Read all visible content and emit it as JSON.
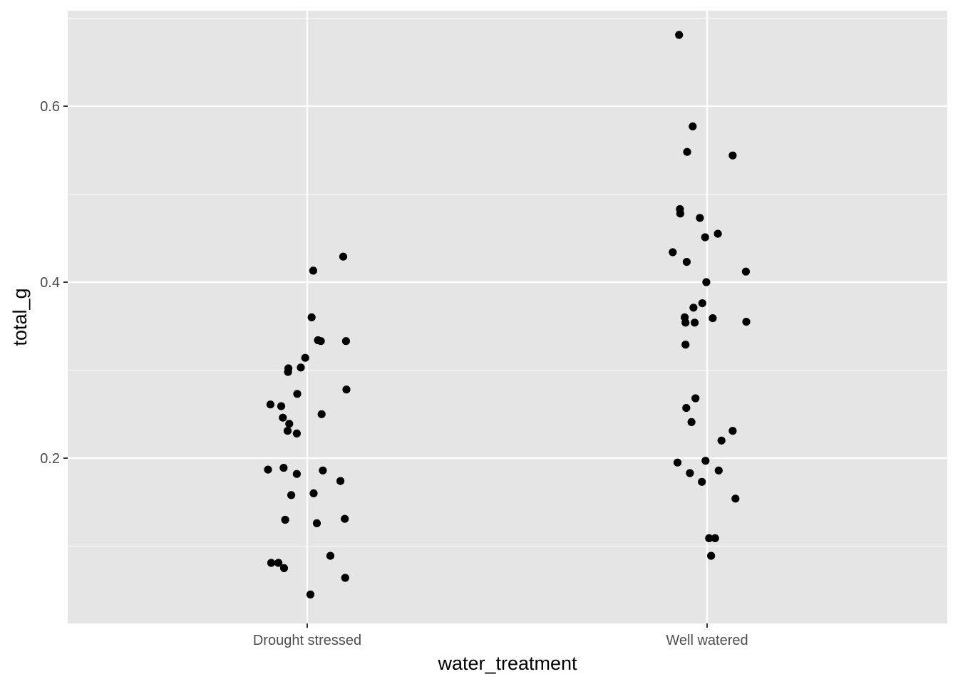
{
  "chart_data": {
    "type": "scatter",
    "title": "",
    "xlabel": "water_treatment",
    "ylabel": "total_g",
    "categories": [
      "Drought stressed",
      "Well watered"
    ],
    "ylim": [
      0.05,
      0.7
    ],
    "yticks": [
      0.2,
      0.4,
      0.6
    ],
    "ytick_labels": [
      "0.2",
      "0.4",
      "0.6"
    ],
    "grid": true,
    "legend": "none",
    "panel_background": "#e5e5e5",
    "grid_color": "#ffffff",
    "point_color": "#000000",
    "points": [
      {
        "category": "Drought stressed",
        "jitter": 0.09,
        "y": 0.429
      },
      {
        "category": "Drought stressed",
        "jitter": 0.015,
        "y": 0.413
      },
      {
        "category": "Drought stressed",
        "jitter": 0.011,
        "y": 0.36
      },
      {
        "category": "Drought stressed",
        "jitter": 0.027,
        "y": 0.334
      },
      {
        "category": "Drought stressed",
        "jitter": 0.034,
        "y": 0.333
      },
      {
        "category": "Drought stressed",
        "jitter": 0.097,
        "y": 0.333
      },
      {
        "category": "Drought stressed",
        "jitter": -0.005,
        "y": 0.314
      },
      {
        "category": "Drought stressed",
        "jitter": -0.016,
        "y": 0.303
      },
      {
        "category": "Drought stressed",
        "jitter": -0.047,
        "y": 0.302
      },
      {
        "category": "Drought stressed",
        "jitter": -0.048,
        "y": 0.298
      },
      {
        "category": "Drought stressed",
        "jitter": 0.098,
        "y": 0.278
      },
      {
        "category": "Drought stressed",
        "jitter": -0.025,
        "y": 0.273
      },
      {
        "category": "Drought stressed",
        "jitter": -0.092,
        "y": 0.261
      },
      {
        "category": "Drought stressed",
        "jitter": -0.065,
        "y": 0.259
      },
      {
        "category": "Drought stressed",
        "jitter": 0.036,
        "y": 0.25
      },
      {
        "category": "Drought stressed",
        "jitter": -0.061,
        "y": 0.246
      },
      {
        "category": "Drought stressed",
        "jitter": -0.045,
        "y": 0.239
      },
      {
        "category": "Drought stressed",
        "jitter": -0.049,
        "y": 0.231
      },
      {
        "category": "Drought stressed",
        "jitter": -0.026,
        "y": 0.228
      },
      {
        "category": "Drought stressed",
        "jitter": -0.098,
        "y": 0.187
      },
      {
        "category": "Drought stressed",
        "jitter": -0.059,
        "y": 0.189
      },
      {
        "category": "Drought stressed",
        "jitter": 0.039,
        "y": 0.186
      },
      {
        "category": "Drought stressed",
        "jitter": -0.026,
        "y": 0.182
      },
      {
        "category": "Drought stressed",
        "jitter": 0.083,
        "y": 0.174
      },
      {
        "category": "Drought stressed",
        "jitter": 0.016,
        "y": 0.16
      },
      {
        "category": "Drought stressed",
        "jitter": -0.04,
        "y": 0.158
      },
      {
        "category": "Drought stressed",
        "jitter": -0.055,
        "y": 0.13
      },
      {
        "category": "Drought stressed",
        "jitter": 0.094,
        "y": 0.131
      },
      {
        "category": "Drought stressed",
        "jitter": 0.024,
        "y": 0.126
      },
      {
        "category": "Drought stressed",
        "jitter": 0.058,
        "y": 0.089
      },
      {
        "category": "Drought stressed",
        "jitter": -0.09,
        "y": 0.081
      },
      {
        "category": "Drought stressed",
        "jitter": -0.072,
        "y": 0.081
      },
      {
        "category": "Drought stressed",
        "jitter": -0.058,
        "y": 0.075
      },
      {
        "category": "Drought stressed",
        "jitter": 0.095,
        "y": 0.064
      },
      {
        "category": "Drought stressed",
        "jitter": 0.008,
        "y": 0.045
      },
      {
        "category": "Well watered",
        "jitter": -0.07,
        "y": 0.681
      },
      {
        "category": "Well watered",
        "jitter": -0.036,
        "y": 0.577
      },
      {
        "category": "Well watered",
        "jitter": -0.05,
        "y": 0.548
      },
      {
        "category": "Well watered",
        "jitter": 0.064,
        "y": 0.544
      },
      {
        "category": "Well watered",
        "jitter": -0.068,
        "y": 0.483
      },
      {
        "category": "Well watered",
        "jitter": -0.067,
        "y": 0.478
      },
      {
        "category": "Well watered",
        "jitter": -0.018,
        "y": 0.473
      },
      {
        "category": "Well watered",
        "jitter": 0.027,
        "y": 0.455
      },
      {
        "category": "Well watered",
        "jitter": -0.005,
        "y": 0.451
      },
      {
        "category": "Well watered",
        "jitter": -0.086,
        "y": 0.434
      },
      {
        "category": "Well watered",
        "jitter": -0.051,
        "y": 0.423
      },
      {
        "category": "Well watered",
        "jitter": 0.097,
        "y": 0.412
      },
      {
        "category": "Well watered",
        "jitter": -0.002,
        "y": 0.4
      },
      {
        "category": "Well watered",
        "jitter": -0.012,
        "y": 0.376
      },
      {
        "category": "Well watered",
        "jitter": -0.034,
        "y": 0.371
      },
      {
        "category": "Well watered",
        "jitter": -0.056,
        "y": 0.36
      },
      {
        "category": "Well watered",
        "jitter": 0.014,
        "y": 0.359
      },
      {
        "category": "Well watered",
        "jitter": -0.054,
        "y": 0.354
      },
      {
        "category": "Well watered",
        "jitter": -0.031,
        "y": 0.354
      },
      {
        "category": "Well watered",
        "jitter": 0.098,
        "y": 0.355
      },
      {
        "category": "Well watered",
        "jitter": -0.054,
        "y": 0.329
      },
      {
        "category": "Well watered",
        "jitter": -0.029,
        "y": 0.268
      },
      {
        "category": "Well watered",
        "jitter": -0.052,
        "y": 0.257
      },
      {
        "category": "Well watered",
        "jitter": -0.039,
        "y": 0.241
      },
      {
        "category": "Well watered",
        "jitter": 0.064,
        "y": 0.231
      },
      {
        "category": "Well watered",
        "jitter": 0.036,
        "y": 0.22
      },
      {
        "category": "Well watered",
        "jitter": -0.074,
        "y": 0.195
      },
      {
        "category": "Well watered",
        "jitter": -0.004,
        "y": 0.197
      },
      {
        "category": "Well watered",
        "jitter": -0.043,
        "y": 0.183
      },
      {
        "category": "Well watered",
        "jitter": 0.029,
        "y": 0.186
      },
      {
        "category": "Well watered",
        "jitter": -0.013,
        "y": 0.173
      },
      {
        "category": "Well watered",
        "jitter": 0.071,
        "y": 0.154
      },
      {
        "category": "Well watered",
        "jitter": 0.005,
        "y": 0.109
      },
      {
        "category": "Well watered",
        "jitter": 0.02,
        "y": 0.109
      },
      {
        "category": "Well watered",
        "jitter": 0.01,
        "y": 0.089
      }
    ]
  }
}
